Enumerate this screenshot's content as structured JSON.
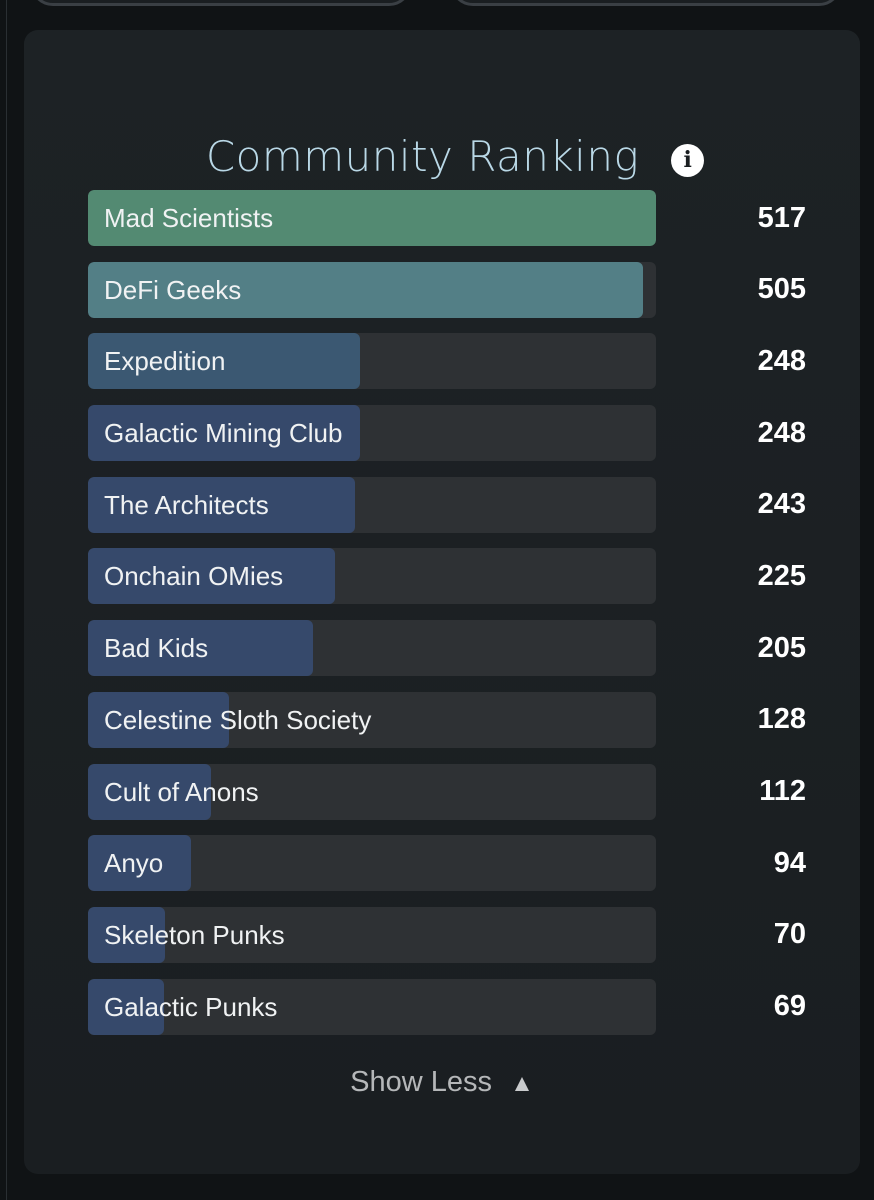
{
  "title": "Community Ranking",
  "icons": {
    "info": "i",
    "collapse_arrow": "▲"
  },
  "show_less_label": "Show Less",
  "chart_data": {
    "type": "bar",
    "max_value": 517,
    "categories": [
      "Mad Scientists",
      "DeFi Geeks",
      "Expedition",
      "Galactic Mining Club",
      "The Architects",
      "Onchain OMies",
      "Bad Kids",
      "Celestine Sloth Society",
      "Cult of Anons",
      "Anyo",
      "Skeleton Punks",
      "Galactic Punks"
    ],
    "values": [
      517,
      505,
      248,
      248,
      243,
      225,
      205,
      128,
      112,
      94,
      70,
      69
    ],
    "colors": [
      "#538a72",
      "#537f86",
      "#3b5872",
      "#36496b",
      "#36496b",
      "#36496b",
      "#36496b",
      "#36496b",
      "#36496b",
      "#36496b",
      "#36496b",
      "#36496b"
    ]
  }
}
